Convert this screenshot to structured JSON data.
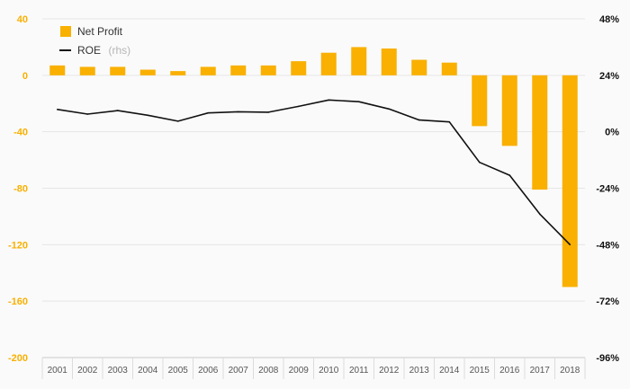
{
  "chart_data": {
    "type": "bar",
    "categories": [
      "2001",
      "2002",
      "2003",
      "2004",
      "2005",
      "2006",
      "2007",
      "2008",
      "2009",
      "2010",
      "2011",
      "2012",
      "2013",
      "2014",
      "2015",
      "2016",
      "2017",
      "2018"
    ],
    "series": [
      {
        "name": "Net Profit",
        "type": "bar",
        "axis": "left",
        "color": "#f9b000",
        "values": [
          7,
          6,
          6,
          4,
          3,
          6,
          7,
          7,
          10,
          16,
          20,
          19,
          11,
          9,
          -36,
          -50,
          -81,
          -150
        ]
      },
      {
        "name": "ROE",
        "legend_suffix": "(rhs)",
        "type": "line",
        "axis": "right",
        "color": "#111111",
        "values": [
          9.5,
          7.5,
          9.0,
          7.0,
          4.5,
          8.0,
          8.5,
          8.3,
          10.8,
          13.5,
          12.8,
          9.7,
          5.0,
          4.2,
          -13.0,
          -18.5,
          -35.0,
          -48.0
        ]
      }
    ],
    "yleft": {
      "min": -200,
      "max": 40,
      "ticks": [
        "40",
        "0",
        "-40",
        "-80",
        "-120",
        "-160",
        "-200"
      ],
      "tick_color": "#f9b000"
    },
    "yright": {
      "min": -96,
      "max": 48,
      "ticks": [
        "48%",
        "24%",
        "0%",
        "-24%",
        "-48%",
        "-72%",
        "-96%"
      ]
    },
    "grid": true,
    "legend_position": "top-left"
  }
}
